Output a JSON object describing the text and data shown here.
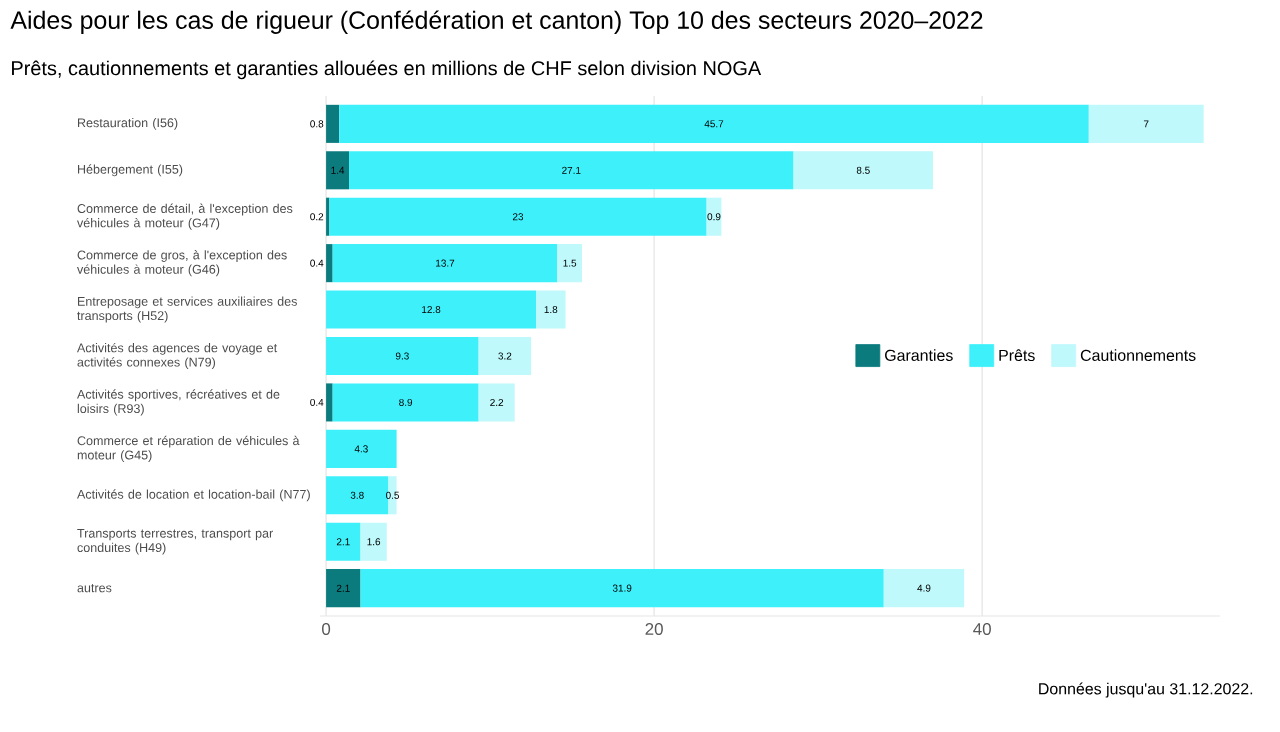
{
  "chart_data": {
    "type": "bar",
    "orientation": "horizontal",
    "stacked": true,
    "title": "Aides pour les cas de rigueur (Confédération et canton) Top 10 des secteurs 2020–2022",
    "subtitle": "Prêts, cautionnements et garanties allouées en millions de CHF selon division NOGA",
    "categories": [
      "Restauration (I56)",
      "Hébergement (I55)",
      "Commerce de détail, à l'exception des véhicules à moteur (G47)",
      "Commerce de gros, à l'exception des véhicules à moteur (G46)",
      "Entreposage et services auxiliaires des transports (H52)",
      "Activités des agences de voyage et activités connexes (N79)",
      "Activités sportives, récréatives et de loisirs (R93)",
      "Commerce et réparation de véhicules à moteur (G45)",
      "Activités de location et location-bail (N77)",
      "Transports terrestres, transport par conduites (H49)",
      "autres"
    ],
    "series": [
      {
        "name": "Garanties",
        "color": "#0b7b7d",
        "values": [
          0.8,
          1.4,
          0.2,
          0.4,
          null,
          null,
          0.4,
          null,
          null,
          null,
          2.1
        ]
      },
      {
        "name": "Prêts",
        "color": "#3ef0fa",
        "values": [
          45.7,
          27.1,
          23,
          13.7,
          12.8,
          9.3,
          8.9,
          4.3,
          3.8,
          2.1,
          31.9
        ]
      },
      {
        "name": "Cautionnements",
        "color": "#bff9fb",
        "values": [
          7,
          8.5,
          0.9,
          1.5,
          1.8,
          3.2,
          2.2,
          null,
          0.5,
          1.6,
          4.9
        ]
      }
    ],
    "xlim": [
      -0.37,
      54.5
    ],
    "xticks": [
      0,
      20,
      40
    ],
    "grid": "x",
    "legend": "right",
    "data_labels": true,
    "annotations": [
      "Données jusqu'au 31.12.2022."
    ]
  }
}
